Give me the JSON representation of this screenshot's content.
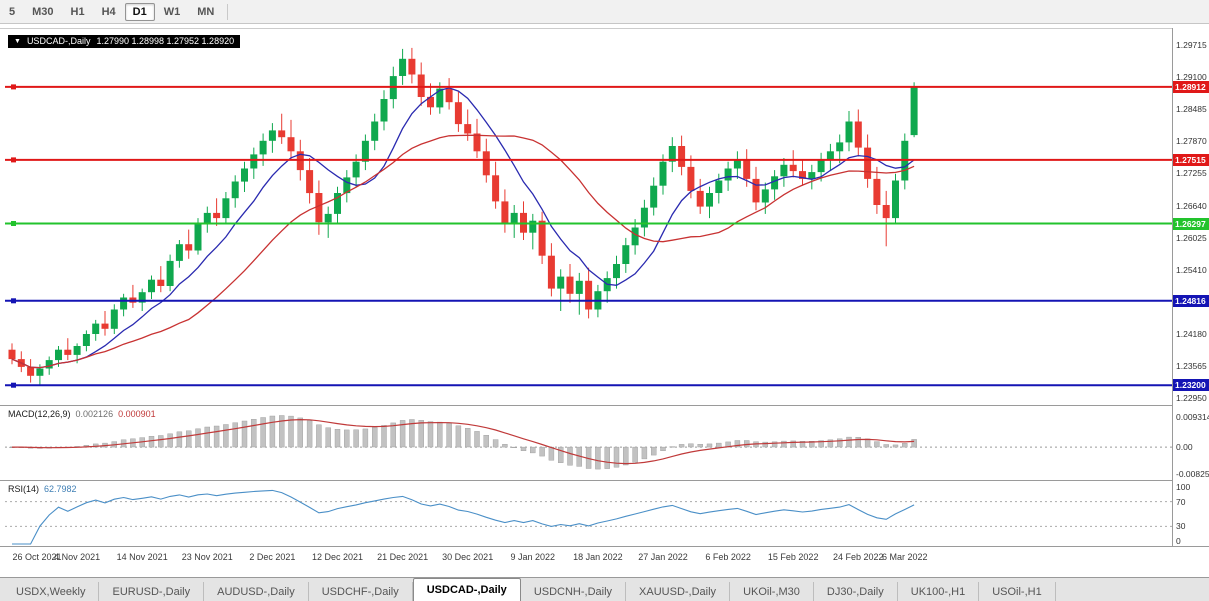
{
  "toolbar": {
    "timeframes": [
      {
        "label": "5",
        "active": false
      },
      {
        "label": "M30",
        "active": false
      },
      {
        "label": "H1",
        "active": false
      },
      {
        "label": "H4",
        "active": false
      },
      {
        "label": "D1",
        "active": true
      },
      {
        "label": "W1",
        "active": false
      },
      {
        "label": "MN",
        "active": false
      }
    ]
  },
  "chart": {
    "collapse_icon": "▼",
    "symbol": "USDCAD-,Daily",
    "ohlc": "1.27990 1.28998 1.27952 1.28920"
  },
  "indicators": {
    "macd": {
      "label": "MACD(12,26,9)",
      "value_main": "0.002126",
      "value_signal": "0.000901",
      "axis_labels": [
        {
          "text": "0.009314",
          "value": 0.009314
        },
        {
          "text": "0.00",
          "value": 0
        },
        {
          "text": "-0.008256",
          "value": -0.008256
        }
      ]
    },
    "rsi": {
      "label": "RSI(14)",
      "value": "62.7982",
      "levels": [
        70,
        30
      ],
      "axis_labels": [
        {
          "text": "100",
          "value": 100
        },
        {
          "text": "70",
          "value": 70
        },
        {
          "text": "30",
          "value": 30
        },
        {
          "text": "0",
          "value": 0
        }
      ]
    }
  },
  "chart_data": {
    "type": "candlestick",
    "title": "USDCAD-,Daily",
    "symbol": "USDCAD",
    "timeframe": "Daily",
    "ohlc_current": {
      "open": 1.2799,
      "high": 1.28998,
      "low": 1.27952,
      "close": 1.2892
    },
    "ylim": [
      1.22859,
      1.30002
    ],
    "y_axis": {
      "labels": [
        "1.29715",
        "1.29100",
        "1.28485",
        "1.27870",
        "1.27255",
        "1.26640",
        "1.26025",
        "1.25410",
        "1.24795",
        "1.24180",
        "1.23565",
        "1.22950"
      ]
    },
    "x_ticks": [
      {
        "label": "26 Oct 2021",
        "bar": 0
      },
      {
        "label": "4 Nov 2021",
        "bar": 7
      },
      {
        "label": "14 Nov 2021",
        "bar": 14
      },
      {
        "label": "23 Nov 2021",
        "bar": 21
      },
      {
        "label": "2 Dec 2021",
        "bar": 28
      },
      {
        "label": "12 Dec 2021",
        "bar": 35
      },
      {
        "label": "21 Dec 2021",
        "bar": 42
      },
      {
        "label": "30 Dec 2021",
        "bar": 49
      },
      {
        "label": "9 Jan 2022",
        "bar": 56
      },
      {
        "label": "18 Jan 2022",
        "bar": 63
      },
      {
        "label": "27 Jan 2022",
        "bar": 70
      },
      {
        "label": "6 Feb 2022",
        "bar": 77
      },
      {
        "label": "15 Feb 2022",
        "bar": 84
      },
      {
        "label": "24 Feb 2022",
        "bar": 91
      },
      {
        "label": "6 Mar 2022",
        "bar": 96
      }
    ],
    "horizontal_lines": [
      {
        "price": 1.28912,
        "label": "1.28912",
        "color": "#e01818",
        "type": "resistance"
      },
      {
        "price": 1.27515,
        "label": "1.27515",
        "color": "#e01818",
        "type": "resistance"
      },
      {
        "price": 1.26297,
        "label": "1.26297",
        "color": "#22c32c",
        "type": "support"
      },
      {
        "price": 1.24816,
        "label": "1.24816",
        "color": "#1414b4",
        "type": "support"
      },
      {
        "price": 1.232,
        "label": "1.23200",
        "color": "#1414b4",
        "type": "support"
      }
    ],
    "moving_averages": [
      {
        "name": "MA fast",
        "period": 8,
        "color": "#2a2ab0"
      },
      {
        "name": "MA slow",
        "period": 20,
        "color": "#c83232"
      }
    ],
    "colors": {
      "up": "#0fa84e",
      "down": "#e83b32",
      "macd_histogram": "#c2c2c2",
      "macd_signal": "#c03a3a",
      "rsi_line": "#4a8fc7"
    },
    "candles": [
      [
        1.2388,
        1.24,
        1.236,
        1.237
      ],
      [
        1.237,
        1.2385,
        1.2345,
        1.2355
      ],
      [
        1.2355,
        1.237,
        1.2325,
        1.2338
      ],
      [
        1.2338,
        1.236,
        1.232,
        1.2352
      ],
      [
        1.2352,
        1.2375,
        1.234,
        1.2368
      ],
      [
        1.2368,
        1.2395,
        1.2355,
        1.2388
      ],
      [
        1.2388,
        1.241,
        1.2368,
        1.2378
      ],
      [
        1.2378,
        1.24,
        1.2362,
        1.2395
      ],
      [
        1.2395,
        1.2425,
        1.2385,
        1.2418
      ],
      [
        1.2418,
        1.2445,
        1.2405,
        1.2438
      ],
      [
        1.2438,
        1.2462,
        1.2415,
        1.2428
      ],
      [
        1.2428,
        1.2475,
        1.2418,
        1.2465
      ],
      [
        1.2465,
        1.2495,
        1.2452,
        1.2488
      ],
      [
        1.2488,
        1.2512,
        1.2468,
        1.2478
      ],
      [
        1.2478,
        1.2505,
        1.2462,
        1.2498
      ],
      [
        1.2498,
        1.253,
        1.2485,
        1.2522
      ],
      [
        1.2522,
        1.2548,
        1.2498,
        1.251
      ],
      [
        1.251,
        1.257,
        1.25,
        1.2558
      ],
      [
        1.2558,
        1.2598,
        1.2545,
        1.259
      ],
      [
        1.259,
        1.2618,
        1.2562,
        1.2578
      ],
      [
        1.2578,
        1.264,
        1.257,
        1.2628
      ],
      [
        1.2628,
        1.2662,
        1.2612,
        1.265
      ],
      [
        1.265,
        1.2678,
        1.2625,
        1.264
      ],
      [
        1.264,
        1.269,
        1.263,
        1.2678
      ],
      [
        1.2678,
        1.2722,
        1.266,
        1.271
      ],
      [
        1.271,
        1.2748,
        1.269,
        1.2735
      ],
      [
        1.2735,
        1.2775,
        1.2715,
        1.2762
      ],
      [
        1.2762,
        1.2802,
        1.274,
        1.2788
      ],
      [
        1.2788,
        1.2822,
        1.2765,
        1.2808
      ],
      [
        1.2808,
        1.284,
        1.2782,
        1.2795
      ],
      [
        1.2795,
        1.2828,
        1.2752,
        1.2768
      ],
      [
        1.2768,
        1.279,
        1.2712,
        1.2732
      ],
      [
        1.2732,
        1.2755,
        1.2668,
        1.2688
      ],
      [
        1.2688,
        1.2712,
        1.2608,
        1.2632
      ],
      [
        1.2632,
        1.2662,
        1.2602,
        1.2648
      ],
      [
        1.2648,
        1.27,
        1.263,
        1.2688
      ],
      [
        1.2688,
        1.2732,
        1.267,
        1.2718
      ],
      [
        1.2718,
        1.2762,
        1.27,
        1.2748
      ],
      [
        1.2748,
        1.28,
        1.2732,
        1.2788
      ],
      [
        1.2788,
        1.284,
        1.277,
        1.2825
      ],
      [
        1.2825,
        1.2885,
        1.2808,
        1.2868
      ],
      [
        1.2868,
        1.293,
        1.285,
        1.2912
      ],
      [
        1.2912,
        1.2964,
        1.2895,
        1.2945
      ],
      [
        1.2945,
        1.2966,
        1.2898,
        1.2915
      ],
      [
        1.2915,
        1.2938,
        1.2855,
        1.2872
      ],
      [
        1.2872,
        1.2898,
        1.2838,
        1.2852
      ],
      [
        1.2852,
        1.29,
        1.284,
        1.2888
      ],
      [
        1.2888,
        1.2908,
        1.2848,
        1.2862
      ],
      [
        1.2862,
        1.2882,
        1.2805,
        1.282
      ],
      [
        1.282,
        1.2848,
        1.2788,
        1.2802
      ],
      [
        1.2802,
        1.283,
        1.2755,
        1.2768
      ],
      [
        1.2768,
        1.2792,
        1.2708,
        1.2722
      ],
      [
        1.2722,
        1.2748,
        1.2658,
        1.2672
      ],
      [
        1.2672,
        1.2695,
        1.2612,
        1.2628
      ],
      [
        1.2628,
        1.2665,
        1.2602,
        1.265
      ],
      [
        1.265,
        1.2672,
        1.2598,
        1.2612
      ],
      [
        1.2612,
        1.2648,
        1.258,
        1.2635
      ],
      [
        1.2635,
        1.2652,
        1.2552,
        1.2568
      ],
      [
        1.2568,
        1.2592,
        1.249,
        1.2505
      ],
      [
        1.2505,
        1.2542,
        1.2462,
        1.2528
      ],
      [
        1.2528,
        1.2552,
        1.2478,
        1.2495
      ],
      [
        1.2495,
        1.2535,
        1.2455,
        1.252
      ],
      [
        1.252,
        1.2545,
        1.2448,
        1.2465
      ],
      [
        1.2465,
        1.2512,
        1.245,
        1.25
      ],
      [
        1.25,
        1.2538,
        1.2478,
        1.2525
      ],
      [
        1.2525,
        1.2568,
        1.2505,
        1.2552
      ],
      [
        1.2552,
        1.2602,
        1.2535,
        1.2588
      ],
      [
        1.2588,
        1.2638,
        1.257,
        1.2622
      ],
      [
        1.2622,
        1.2675,
        1.2605,
        1.266
      ],
      [
        1.266,
        1.2718,
        1.2645,
        1.2702
      ],
      [
        1.2702,
        1.2762,
        1.2685,
        1.2748
      ],
      [
        1.2748,
        1.2795,
        1.2728,
        1.2778
      ],
      [
        1.2778,
        1.2798,
        1.2722,
        1.2738
      ],
      [
        1.2738,
        1.276,
        1.2678,
        1.2692
      ],
      [
        1.2692,
        1.2715,
        1.2648,
        1.2662
      ],
      [
        1.2662,
        1.27,
        1.264,
        1.2688
      ],
      [
        1.2688,
        1.2725,
        1.2668,
        1.2712
      ],
      [
        1.2712,
        1.2748,
        1.2692,
        1.2735
      ],
      [
        1.2735,
        1.2768,
        1.2715,
        1.2752
      ],
      [
        1.2752,
        1.2772,
        1.27,
        1.2715
      ],
      [
        1.2715,
        1.2738,
        1.2655,
        1.267
      ],
      [
        1.267,
        1.2708,
        1.2648,
        1.2695
      ],
      [
        1.2695,
        1.2732,
        1.2675,
        1.272
      ],
      [
        1.272,
        1.2755,
        1.27,
        1.2742
      ],
      [
        1.2742,
        1.277,
        1.2718,
        1.273
      ],
      [
        1.273,
        1.2752,
        1.2702,
        1.2715
      ],
      [
        1.2715,
        1.2742,
        1.2695,
        1.2728
      ],
      [
        1.2728,
        1.2765,
        1.271,
        1.2752
      ],
      [
        1.2752,
        1.2782,
        1.273,
        1.2768
      ],
      [
        1.2768,
        1.28,
        1.2745,
        1.2785
      ],
      [
        1.2785,
        1.2845,
        1.2768,
        1.2825
      ],
      [
        1.2825,
        1.2848,
        1.2758,
        1.2775
      ],
      [
        1.2775,
        1.28,
        1.2698,
        1.2715
      ],
      [
        1.2715,
        1.2738,
        1.2648,
        1.2665
      ],
      [
        1.2665,
        1.2692,
        1.2586,
        1.264
      ],
      [
        1.264,
        1.2725,
        1.2628,
        1.2712
      ],
      [
        1.2712,
        1.2802,
        1.2695,
        1.2788
      ],
      [
        1.2799,
        1.29,
        1.2795,
        1.2892
      ]
    ]
  },
  "tabs": [
    {
      "label": "USDX,Weekly",
      "active": false
    },
    {
      "label": "EURUSD-,Daily",
      "active": false
    },
    {
      "label": "AUDUSD-,Daily",
      "active": false
    },
    {
      "label": "USDCHF-,Daily",
      "active": false
    },
    {
      "label": "USDCAD-,Daily",
      "active": true
    },
    {
      "label": "USDCNH-,Daily",
      "active": false
    },
    {
      "label": "XAUUSD-,Daily",
      "active": false
    },
    {
      "label": "UKOil-,M30",
      "active": false
    },
    {
      "label": "DJ30-,Daily",
      "active": false
    },
    {
      "label": "UK100-,H1",
      "active": false
    },
    {
      "label": "USOil-,H1",
      "active": false
    }
  ]
}
